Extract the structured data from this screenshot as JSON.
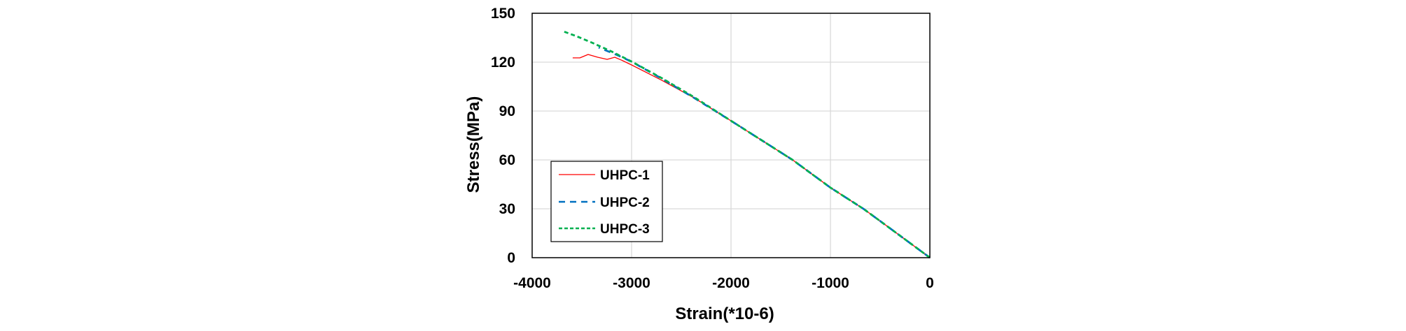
{
  "chart_data": {
    "type": "line",
    "title": "",
    "xlabel": "Strain(*10-6)",
    "ylabel": "Stress(MPa)",
    "xlim": [
      -4000,
      0
    ],
    "ylim": [
      0,
      150
    ],
    "xticks": [
      -4000,
      -3000,
      -2000,
      -1000,
      0
    ],
    "yticks": [
      0,
      30,
      60,
      90,
      120,
      150
    ],
    "xtick_labels": [
      "-4000",
      "-3000",
      "-2000",
      "-1000",
      "0"
    ],
    "ytick_labels": [
      "0",
      "30",
      "60",
      "90",
      "120",
      "150"
    ],
    "grid": true,
    "legend_position": "lower left (inside plot)",
    "series": [
      {
        "name": "UHPC-1",
        "color": "#ff0000",
        "style": "solid",
        "x": [
          0,
          -400,
          -668,
          -1000,
          -1380,
          -2000,
          -2370,
          -2700,
          -3000,
          -3100,
          -3169,
          -3246,
          -3340,
          -3437,
          -3520,
          -3592
        ],
        "y": [
          0,
          18,
          30,
          43,
          60,
          84,
          98,
          109,
          118.3,
          121.2,
          123,
          121.7,
          123,
          124.7,
          122.6,
          122.6
        ]
      },
      {
        "name": "UHPC-2",
        "color": "#0070c0",
        "style": "dashed",
        "x": [
          0,
          -400,
          -668,
          -1000,
          -1380,
          -2000,
          -2370,
          -2700,
          -3000,
          -3150,
          -3331
        ],
        "y": [
          0,
          18,
          30,
          43,
          60,
          84,
          98,
          110,
          120.3,
          124.5,
          129
        ]
      },
      {
        "name": "UHPC-3",
        "color": "#00b050",
        "style": "dotted-dash",
        "x": [
          0,
          -400,
          -668,
          -1000,
          -1380,
          -2000,
          -2370,
          -2700,
          -3000,
          -3200,
          -3400,
          -3550,
          -3690
        ],
        "y": [
          0,
          18,
          30,
          43,
          60,
          84,
          98.5,
          110.3,
          120.4,
          126.5,
          132,
          135.8,
          139
        ]
      }
    ]
  },
  "legend": {
    "items": [
      {
        "label": "UHPC-1",
        "color": "#ff0000"
      },
      {
        "label": "UHPC-2",
        "color": "#0070c0"
      },
      {
        "label": "UHPC-3",
        "color": "#00b050"
      }
    ]
  },
  "colors": {
    "grid": "#d9d9d9",
    "frame": "#000000",
    "background": "#ffffff"
  }
}
